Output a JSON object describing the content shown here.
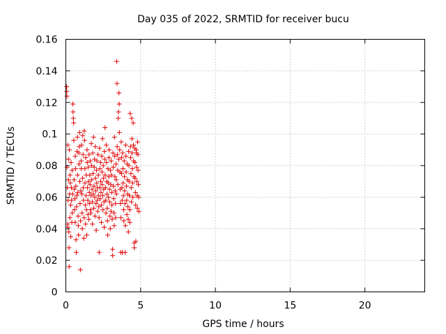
{
  "chart_data": {
    "type": "scatter",
    "title": "Day 035 of 2022, SRMTID for receiver bucu",
    "xlabel": "GPS time / hours",
    "ylabel": "SRMTID / TECUs",
    "xlim": [
      0,
      24
    ],
    "ylim": [
      0,
      0.16
    ],
    "xticks": [
      0,
      5,
      10,
      15,
      20
    ],
    "xtick_labels": [
      "0",
      "5",
      "10",
      "15",
      "20"
    ],
    "yticks": [
      0,
      0.02,
      0.04,
      0.06,
      0.08,
      0.1,
      0.12,
      0.14,
      0.16
    ],
    "ytick_labels": [
      "0",
      "0.02",
      "0.04",
      "0.06",
      "0.08",
      "0.1",
      "0.12",
      "0.14",
      "0.16"
    ],
    "grid": true,
    "marker": "+",
    "color": "#e00000",
    "series": [
      {
        "name": "SRMTID",
        "points": [
          [
            0.05,
            0.13
          ],
          [
            0.06,
            0.127
          ],
          [
            0.07,
            0.124
          ],
          [
            0.08,
            0.079
          ],
          [
            0.1,
            0.066
          ],
          [
            0.12,
            0.043
          ],
          [
            0.13,
            0.093
          ],
          [
            0.14,
            0.041
          ],
          [
            0.15,
            0.058
          ],
          [
            0.17,
            0.071
          ],
          [
            0.18,
            0.084
          ],
          [
            0.2,
            0.038
          ],
          [
            0.21,
            0.028
          ],
          [
            0.22,
            0.016
          ],
          [
            0.24,
            0.09
          ],
          [
            0.25,
            0.062
          ],
          [
            0.27,
            0.047
          ],
          [
            0.28,
            0.074
          ],
          [
            0.3,
            0.069
          ],
          [
            0.32,
            0.055
          ],
          [
            0.33,
            0.035
          ],
          [
            0.35,
            0.082
          ],
          [
            0.37,
            0.066
          ],
          [
            0.38,
            0.058
          ],
          [
            0.4,
            0.044
          ],
          [
            0.42,
            0.077
          ],
          [
            0.43,
            0.05
          ],
          [
            0.45,
            0.062
          ],
          [
            0.47,
            0.119
          ],
          [
            0.48,
            0.114
          ],
          [
            0.5,
            0.11
          ],
          [
            0.52,
            0.107
          ],
          [
            0.53,
            0.096
          ],
          [
            0.55,
            0.071
          ],
          [
            0.57,
            0.065
          ],
          [
            0.58,
            0.052
          ],
          [
            0.6,
            0.059
          ],
          [
            0.62,
            0.044
          ],
          [
            0.63,
            0.086
          ],
          [
            0.65,
            0.078
          ],
          [
            0.67,
            0.067
          ],
          [
            0.68,
            0.033
          ],
          [
            0.7,
            0.025
          ],
          [
            0.72,
            0.054
          ],
          [
            0.73,
            0.061
          ],
          [
            0.75,
            0.089
          ],
          [
            0.77,
            0.098
          ],
          [
            0.78,
            0.074
          ],
          [
            0.8,
            0.063
          ],
          [
            0.82,
            0.048
          ],
          [
            0.83,
            0.042
          ],
          [
            0.85,
            0.036
          ],
          [
            0.87,
            0.088
          ],
          [
            0.88,
            0.081
          ],
          [
            0.9,
            0.092
          ],
          [
            0.92,
            0.101
          ],
          [
            0.93,
            0.07
          ],
          [
            0.95,
            0.056
          ],
          [
            0.97,
            0.014
          ],
          [
            0.98,
            0.045
          ],
          [
            1.0,
            0.064
          ],
          [
            1.02,
            0.083
          ],
          [
            1.03,
            0.078
          ],
          [
            1.05,
            0.093
          ],
          [
            1.07,
            0.062
          ],
          [
            1.08,
            0.05
          ],
          [
            1.1,
            0.04
          ],
          [
            1.12,
            0.072
          ],
          [
            1.13,
            0.099
          ],
          [
            1.15,
            0.087
          ],
          [
            1.17,
            0.066
          ],
          [
            1.18,
            0.058
          ],
          [
            1.2,
            0.034
          ],
          [
            1.22,
            0.047
          ],
          [
            1.23,
            0.102
          ],
          [
            1.25,
            0.096
          ],
          [
            1.27,
            0.078
          ],
          [
            1.28,
            0.069
          ],
          [
            1.3,
            0.055
          ],
          [
            1.32,
            0.043
          ],
          [
            1.33,
            0.085
          ],
          [
            1.35,
            0.061
          ],
          [
            1.37,
            0.074
          ],
          [
            1.38,
            0.052
          ],
          [
            1.4,
            0.036
          ],
          [
            1.42,
            0.09
          ],
          [
            1.43,
            0.082
          ],
          [
            1.45,
            0.066
          ],
          [
            1.47,
            0.058
          ],
          [
            1.48,
            0.049
          ],
          [
            1.5,
            0.079
          ],
          [
            1.52,
            0.07
          ],
          [
            1.53,
            0.046
          ],
          [
            1.55,
            0.087
          ],
          [
            1.57,
            0.063
          ],
          [
            1.58,
            0.056
          ],
          [
            1.6,
            0.074
          ],
          [
            1.62,
            0.068
          ],
          [
            1.63,
            0.083
          ],
          [
            1.65,
            0.052
          ],
          [
            1.67,
            0.061
          ],
          [
            1.68,
            0.05
          ],
          [
            1.7,
            0.094
          ],
          [
            1.72,
            0.08
          ],
          [
            1.73,
            0.071
          ],
          [
            1.75,
            0.065
          ],
          [
            1.77,
            0.057
          ],
          [
            1.78,
            0.043
          ],
          [
            1.8,
            0.088
          ],
          [
            1.82,
            0.075
          ],
          [
            1.83,
            0.062
          ],
          [
            1.85,
            0.098
          ],
          [
            1.87,
            0.053
          ],
          [
            1.88,
            0.067
          ],
          [
            1.9,
            0.079
          ],
          [
            1.92,
            0.084
          ],
          [
            1.93,
            0.06
          ],
          [
            1.95,
            0.048
          ],
          [
            1.97,
            0.092
          ],
          [
            1.98,
            0.072
          ],
          [
            2.0,
            0.064
          ],
          [
            2.02,
            0.056
          ],
          [
            2.03,
            0.039
          ],
          [
            2.05,
            0.077
          ],
          [
            2.07,
            0.069
          ],
          [
            2.08,
            0.083
          ],
          [
            2.1,
            0.058
          ],
          [
            2.12,
            0.066
          ],
          [
            2.13,
            0.051
          ],
          [
            2.15,
            0.087
          ],
          [
            2.17,
            0.074
          ],
          [
            2.18,
            0.061
          ],
          [
            2.2,
            0.054
          ],
          [
            2.22,
            0.047
          ],
          [
            2.23,
            0.025
          ],
          [
            2.25,
            0.091
          ],
          [
            2.27,
            0.078
          ],
          [
            2.28,
            0.066
          ],
          [
            2.3,
            0.059
          ],
          [
            2.32,
            0.082
          ],
          [
            2.33,
            0.07
          ],
          [
            2.35,
            0.063
          ],
          [
            2.37,
            0.055
          ],
          [
            2.38,
            0.044
          ],
          [
            2.4,
            0.086
          ],
          [
            2.42,
            0.076
          ],
          [
            2.43,
            0.068
          ],
          [
            2.45,
            0.097
          ],
          [
            2.47,
            0.061
          ],
          [
            2.48,
            0.052
          ],
          [
            2.5,
            0.08
          ],
          [
            2.52,
            0.072
          ],
          [
            2.53,
            0.065
          ],
          [
            2.55,
            0.057
          ],
          [
            2.57,
            0.041
          ],
          [
            2.58,
            0.089
          ],
          [
            2.6,
            0.084
          ],
          [
            2.62,
            0.104
          ],
          [
            2.63,
            0.074
          ],
          [
            2.65,
            0.066
          ],
          [
            2.67,
            0.058
          ],
          [
            2.68,
            0.05
          ],
          [
            2.7,
            0.093
          ],
          [
            2.72,
            0.082
          ],
          [
            2.73,
            0.07
          ],
          [
            2.75,
            0.062
          ],
          [
            2.77,
            0.053
          ],
          [
            2.78,
            0.045
          ],
          [
            2.8,
            0.036
          ],
          [
            2.82,
            0.078
          ],
          [
            2.83,
            0.069
          ],
          [
            2.85,
            0.06
          ],
          [
            2.87,
            0.073
          ],
          [
            2.88,
            0.085
          ],
          [
            2.9,
            0.09
          ],
          [
            2.92,
            0.065
          ],
          [
            2.93,
            0.057
          ],
          [
            2.95,
            0.048
          ],
          [
            2.97,
            0.04
          ],
          [
            2.98,
            0.077
          ],
          [
            3.0,
            0.068
          ],
          [
            3.02,
            0.051
          ],
          [
            3.03,
            0.083
          ],
          [
            3.05,
            0.074
          ],
          [
            3.07,
            0.063
          ],
          [
            3.08,
            0.055
          ],
          [
            3.1,
            0.046
          ],
          [
            3.12,
            0.027
          ],
          [
            3.13,
            0.023
          ],
          [
            3.15,
            0.088
          ],
          [
            3.17,
            0.079
          ],
          [
            3.18,
            0.067
          ],
          [
            3.2,
            0.059
          ],
          [
            3.22,
            0.05
          ],
          [
            3.23,
            0.042
          ],
          [
            3.25,
            0.098
          ],
          [
            3.27,
            0.086
          ],
          [
            3.28,
            0.073
          ],
          [
            3.3,
            0.064
          ],
          [
            3.32,
            0.056
          ],
          [
            3.33,
            0.047
          ],
          [
            3.35,
            0.081
          ],
          [
            3.37,
            0.071
          ],
          [
            3.38,
            0.062
          ],
          [
            3.4,
            0.146
          ],
          [
            3.42,
            0.132
          ],
          [
            3.43,
            0.092
          ],
          [
            3.45,
            0.087
          ],
          [
            3.47,
            0.077
          ],
          [
            3.48,
            0.068
          ],
          [
            3.5,
            0.11
          ],
          [
            3.52,
            0.114
          ],
          [
            3.53,
            0.084
          ],
          [
            3.55,
            0.126
          ],
          [
            3.57,
            0.119
          ],
          [
            3.58,
            0.101
          ],
          [
            3.6,
            0.09
          ],
          [
            3.62,
            0.076
          ],
          [
            3.63,
            0.065
          ],
          [
            3.65,
            0.056
          ],
          [
            3.67,
            0.025
          ],
          [
            3.68,
            0.047
          ],
          [
            3.7,
            0.095
          ],
          [
            3.72,
            0.085
          ],
          [
            3.73,
            0.075
          ],
          [
            3.75,
            0.066
          ],
          [
            3.77,
            0.058
          ],
          [
            3.78,
            0.025
          ],
          [
            3.8,
            0.088
          ],
          [
            3.82,
            0.078
          ],
          [
            3.83,
            0.069
          ],
          [
            3.85,
            0.061
          ],
          [
            3.87,
            0.052
          ],
          [
            3.88,
            0.045
          ],
          [
            3.9,
            0.083
          ],
          [
            3.92,
            0.073
          ],
          [
            3.93,
            0.064
          ],
          [
            3.95,
            0.056
          ],
          [
            3.97,
            0.025
          ],
          [
            3.98,
            0.042
          ],
          [
            4.0,
            0.093
          ],
          [
            4.02,
            0.086
          ],
          [
            4.03,
            0.076
          ],
          [
            4.05,
            0.067
          ],
          [
            4.07,
            0.058
          ],
          [
            4.08,
            0.049
          ],
          [
            4.1,
            0.081
          ],
          [
            4.12,
            0.071
          ],
          [
            4.13,
            0.062
          ],
          [
            4.15,
            0.054
          ],
          [
            4.17,
            0.046
          ],
          [
            4.18,
            0.038
          ],
          [
            4.2,
            0.089
          ],
          [
            4.22,
            0.08
          ],
          [
            4.23,
            0.07
          ],
          [
            4.25,
            0.061
          ],
          [
            4.27,
            0.052
          ],
          [
            4.28,
            0.044
          ],
          [
            4.3,
            0.113
          ],
          [
            4.32,
            0.092
          ],
          [
            4.33,
            0.085
          ],
          [
            4.35,
            0.075
          ],
          [
            4.37,
            0.066
          ],
          [
            4.38,
            0.057
          ],
          [
            4.4,
            0.11
          ],
          [
            4.42,
            0.097
          ],
          [
            4.43,
            0.088
          ],
          [
            4.45,
            0.078
          ],
          [
            4.47,
            0.069
          ],
          [
            4.48,
            0.06
          ],
          [
            4.5,
            0.107
          ],
          [
            4.52,
            0.093
          ],
          [
            4.53,
            0.083
          ],
          [
            4.55,
            0.073
          ],
          [
            4.57,
            0.031
          ],
          [
            4.58,
            0.028
          ],
          [
            4.6,
            0.091
          ],
          [
            4.62,
            0.082
          ],
          [
            4.63,
            0.072
          ],
          [
            4.65,
            0.063
          ],
          [
            4.67,
            0.055
          ],
          [
            4.68,
            0.032
          ],
          [
            4.7,
            0.09
          ],
          [
            4.72,
            0.088
          ],
          [
            4.73,
            0.079
          ],
          [
            4.75,
            0.07
          ],
          [
            4.77,
            0.061
          ],
          [
            4.78,
            0.053
          ],
          [
            4.8,
            0.095
          ],
          [
            4.82,
            0.087
          ],
          [
            4.83,
            0.077
          ],
          [
            4.85,
            0.068
          ],
          [
            4.87,
            0.06
          ],
          [
            4.88,
            0.051
          ]
        ]
      }
    ]
  }
}
